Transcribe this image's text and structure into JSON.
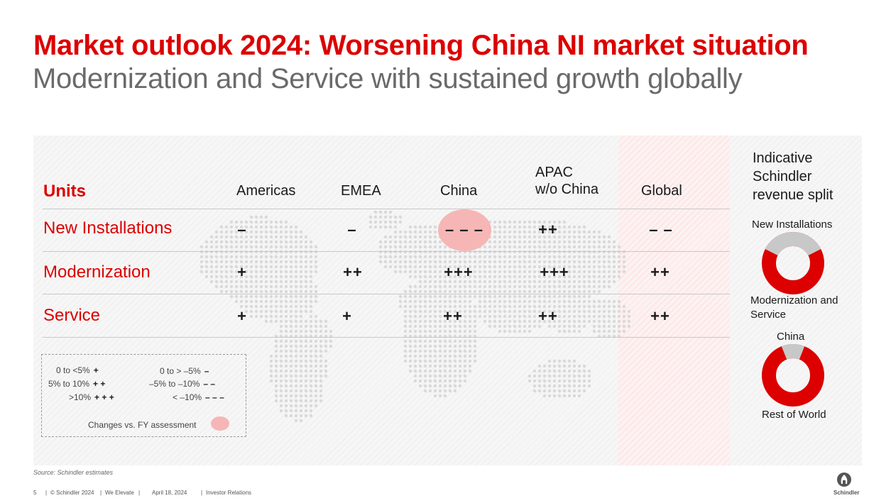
{
  "title": "Market outlook 2024: Worsening China NI market situation",
  "subtitle": "Modernization and Service with sustained growth globally",
  "table": {
    "units_label": "Units",
    "headers": {
      "americas": "Americas",
      "emea": "EMEA",
      "china": "China",
      "apac_line1": "APAC",
      "apac_line2": "w/o China",
      "global": "Global"
    },
    "rows": [
      {
        "label": "New Installations",
        "americas": "–",
        "emea": "–",
        "china": "– – –",
        "apac": "++",
        "global": "– –"
      },
      {
        "label": "Modernization",
        "americas": "+",
        "emea": "++",
        "china": "+++",
        "apac": "+++",
        "global": "++"
      },
      {
        "label": "Service",
        "americas": "+",
        "emea": "+",
        "china": "++",
        "apac": "++",
        "global": "++"
      }
    ],
    "highlight_color": "#f7b6b6"
  },
  "legend": {
    "pos1_label": "0 to <5%",
    "pos1_sym": "+",
    "pos2_label": "5% to 10%",
    "pos2_sym": "+ +",
    "pos3_label": ">10%",
    "pos3_sym": "+ + +",
    "neg1_label": "0 to > –5%",
    "neg1_sym": "–",
    "neg2_label": "–5% to –10%",
    "neg2_sym": "– –",
    "neg3_label": "< –10%",
    "neg3_sym": "– – –",
    "changes_label": "Changes vs. FY assessment"
  },
  "revenue_split": {
    "title_line1": "Indicative",
    "title_line2": "Schindler",
    "title_line3": "revenue split",
    "donut1_top_label": "New Installations",
    "donut1_bottom_label_line1": "Modernization and",
    "donut1_bottom_label_line2": "Service",
    "donut1_gray_share": 0.35,
    "donut2_top_label": "China",
    "donut2_bottom_label": "Rest of World",
    "donut2_gray_share": 0.12,
    "red": "#dc0000",
    "gray": "#c8c8c8"
  },
  "source": "Source: Schindler estimates",
  "footer": {
    "page": "5",
    "copyright": "© Schindler 2024",
    "tagline": "We Elevate",
    "date": "April 18, 2024",
    "section": "Investor Relations",
    "logo_text": "Schindler"
  },
  "colors": {
    "accent": "#dc0000",
    "subtitle": "#6a6a6a"
  }
}
